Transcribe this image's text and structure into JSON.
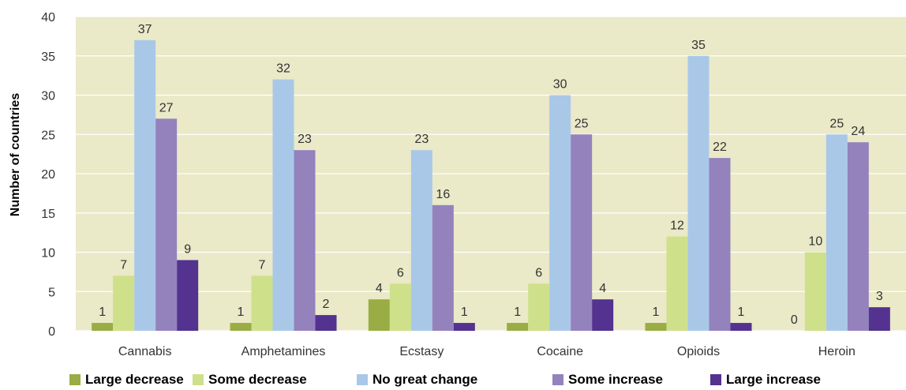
{
  "chart_data": {
    "type": "bar",
    "ylabel": "Number of countries",
    "xlabel": "",
    "ylim": [
      0,
      40
    ],
    "yticks": [
      0,
      5,
      10,
      15,
      20,
      25,
      30,
      35,
      40
    ],
    "grid": true,
    "legend_position": "bottom",
    "categories": [
      "Cannabis",
      "Amphetamines",
      "Ecstasy",
      "Cocaine",
      "Opioids",
      "Heroin"
    ],
    "series": [
      {
        "name": "Large decrease",
        "color": "#99ad44",
        "values": [
          1,
          1,
          4,
          1,
          1,
          0
        ]
      },
      {
        "name": "Some decrease",
        "color": "#cfe08a",
        "values": [
          7,
          7,
          6,
          6,
          12,
          10
        ]
      },
      {
        "name": "No great change",
        "color": "#a9c8e8",
        "values": [
          37,
          32,
          23,
          30,
          35,
          25
        ]
      },
      {
        "name": "Some increase",
        "color": "#9482bd",
        "values": [
          27,
          23,
          16,
          25,
          22,
          24
        ]
      },
      {
        "name": "Large increase",
        "color": "#533290",
        "values": [
          9,
          2,
          1,
          4,
          1,
          3
        ]
      }
    ],
    "plot_background": "#eae9c8",
    "grid_color": "#ffffff"
  }
}
